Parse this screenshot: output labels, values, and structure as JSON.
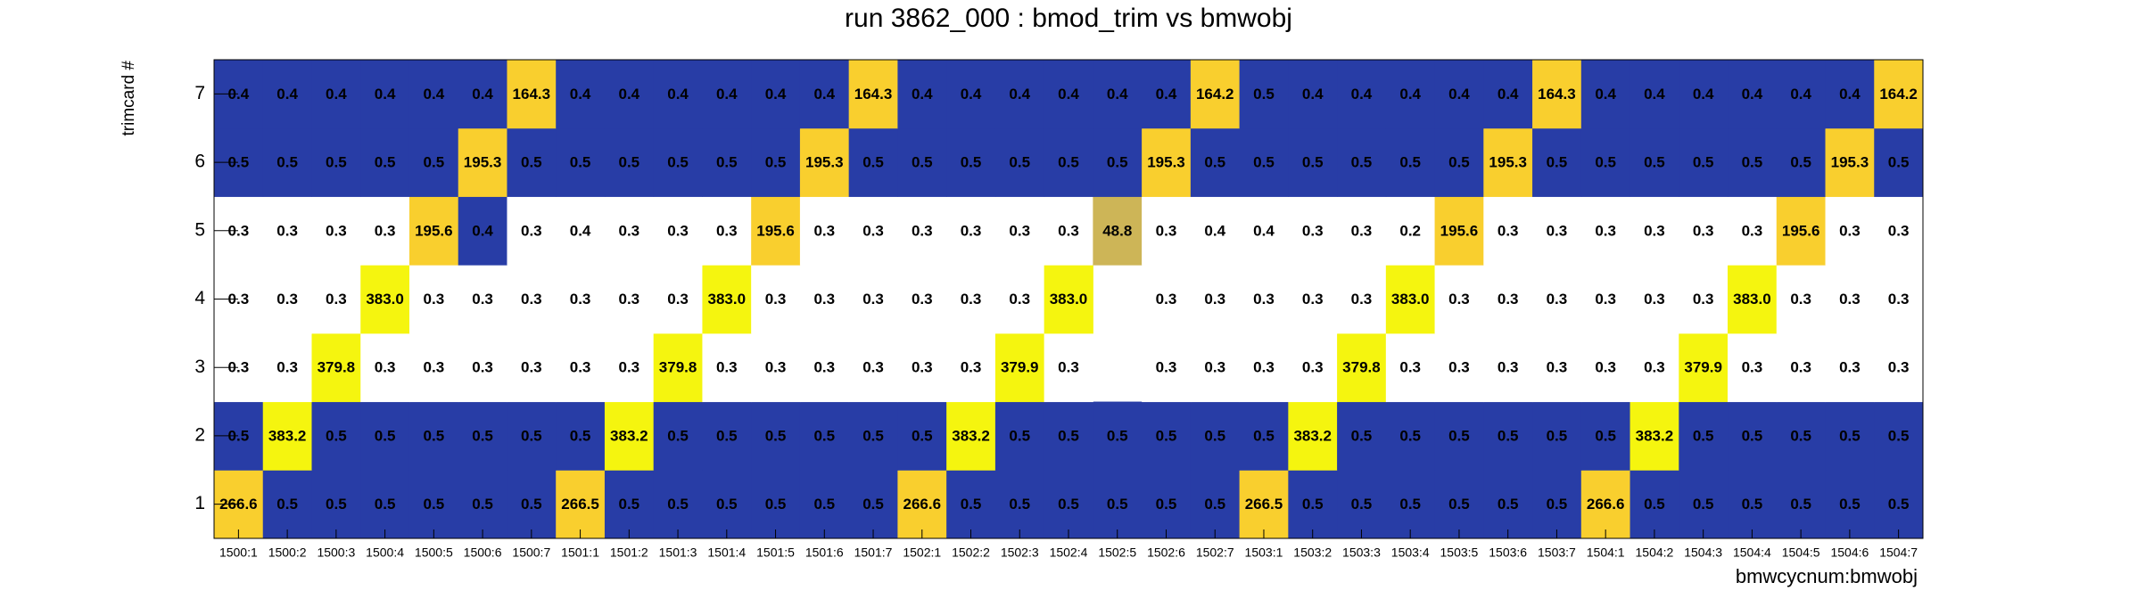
{
  "chart_data": {
    "type": "heatmap",
    "title": "run 3862_000 : bmod_trim vs bmwobj",
    "x_label": "bmwcycnum:bmwobj",
    "y_label": "trimcard #",
    "categories": [
      "1500:1",
      "1500:2",
      "1500:3",
      "1500:4",
      "1500:5",
      "1500:6",
      "1500:7",
      "1501:1",
      "1501:2",
      "1501:3",
      "1501:4",
      "1501:5",
      "1501:6",
      "1501:7",
      "1502:1",
      "1502:2",
      "1502:3",
      "1502:4",
      "1502:5",
      "1502:6",
      "1502:7",
      "1503:1",
      "1503:2",
      "1503:3",
      "1503:4",
      "1503:5",
      "1503:6",
      "1503:7",
      "1504:1",
      "1504:2",
      "1504:3",
      "1504:4",
      "1504:5",
      "1504:6",
      "1504:7"
    ],
    "y_categories": [
      "1",
      "2",
      "3",
      "4",
      "5",
      "6",
      "7"
    ],
    "rows": [
      {
        "values": [
          266.6,
          0.5,
          0.5,
          0.5,
          0.5,
          0.5,
          0.5,
          266.5,
          0.5,
          0.5,
          0.5,
          0.5,
          0.5,
          0.5,
          266.6,
          0.5,
          0.5,
          0.5,
          0.5,
          0.5,
          0.5,
          266.5,
          0.5,
          0.5,
          0.5,
          0.5,
          0.5,
          0.5,
          266.6,
          0.5,
          0.5,
          0.5,
          0.5,
          0.5,
          0.5
        ],
        "colors": [
          "#f9cf2e",
          "#283da6",
          "#283da6",
          "#283da6",
          "#283da6",
          "#283da6",
          "#283da6",
          "#f9cf2e",
          "#283da6",
          "#283da6",
          "#283da6",
          "#283da6",
          "#283da6",
          "#283da6",
          "#f9cf2e",
          "#283da6",
          "#283da6",
          "#283da6",
          "#283da6",
          "#283da6",
          "#283da6",
          "#f9cf2e",
          "#283da6",
          "#283da6",
          "#283da6",
          "#283da6",
          "#283da6",
          "#283da6",
          "#f9cf2e",
          "#283da6",
          "#283da6",
          "#283da6",
          "#283da6",
          "#283da6",
          "#283da6"
        ]
      },
      {
        "values": [
          0.5,
          383.2,
          0.5,
          0.5,
          0.5,
          0.5,
          0.5,
          0.5,
          383.2,
          0.5,
          0.5,
          0.5,
          0.5,
          0.5,
          0.5,
          383.2,
          0.5,
          0.5,
          0.5,
          0.5,
          0.5,
          0.5,
          383.2,
          0.5,
          0.5,
          0.5,
          0.5,
          0.5,
          0.5,
          383.2,
          0.5,
          0.5,
          0.5,
          0.5,
          0.5
        ],
        "colors": [
          "#283da6",
          "#f5f50f",
          "#283da6",
          "#283da6",
          "#283da6",
          "#283da6",
          "#283da6",
          "#283da6",
          "#f5f50f",
          "#283da6",
          "#283da6",
          "#283da6",
          "#283da6",
          "#283da6",
          "#283da6",
          "#f5f50f",
          "#283da6",
          "#283da6",
          "#283da6",
          "#283da6",
          "#283da6",
          "#283da6",
          "#f5f50f",
          "#283da6",
          "#283da6",
          "#283da6",
          "#283da6",
          "#283da6",
          "#283da6",
          "#f5f50f",
          "#283da6",
          "#283da6",
          "#283da6",
          "#283da6",
          "#283da6"
        ]
      },
      {
        "values": [
          0.3,
          0.3,
          379.8,
          0.3,
          0.3,
          0.3,
          0.3,
          0.3,
          0.3,
          379.8,
          0.3,
          0.3,
          0.3,
          0.3,
          0.3,
          0.3,
          379.9,
          0.3,
          null,
          0.3,
          0.3,
          0.3,
          0.3,
          379.8,
          0.3,
          0.3,
          0.3,
          0.3,
          0.3,
          0.3,
          379.9,
          0.3,
          0.3,
          0.3,
          0.3
        ],
        "colors": [
          "#ffffff",
          "#ffffff",
          "#f5f50f",
          "#ffffff",
          "#ffffff",
          "#ffffff",
          "#ffffff",
          "#ffffff",
          "#ffffff",
          "#f5f50f",
          "#ffffff",
          "#ffffff",
          "#ffffff",
          "#ffffff",
          "#ffffff",
          "#ffffff",
          "#f5f50f",
          "#ffffff",
          null,
          "#ffffff",
          "#ffffff",
          "#ffffff",
          "#ffffff",
          "#f5f50f",
          "#ffffff",
          "#ffffff",
          "#ffffff",
          "#ffffff",
          "#ffffff",
          "#ffffff",
          "#f5f50f",
          "#ffffff",
          "#ffffff",
          "#ffffff",
          "#ffffff"
        ]
      },
      {
        "values": [
          0.3,
          0.3,
          0.3,
          383,
          0.3,
          0.3,
          0.3,
          0.3,
          0.3,
          0.3,
          383,
          0.3,
          0.3,
          0.3,
          0.3,
          0.3,
          0.3,
          383,
          null,
          0.3,
          0.3,
          0.3,
          0.3,
          0.3,
          383,
          0.3,
          0.3,
          0.3,
          0.3,
          0.3,
          0.3,
          383,
          0.3,
          0.3,
          0.3
        ],
        "value_labels": [
          "0.3",
          "0.3",
          "0.3",
          "383.0",
          "0.3",
          "0.3",
          "0.3",
          "0.3",
          "0.3",
          "0.3",
          "383.0",
          "0.3",
          "0.3",
          "0.3",
          "0.3",
          "0.3",
          "0.3",
          "383.0",
          null,
          "0.3",
          "0.3",
          "0.3",
          "0.3",
          "0.3",
          "383.0",
          "0.3",
          "0.3",
          "0.3",
          "0.3",
          "0.3",
          "0.3",
          "383.0",
          "0.3",
          "0.3",
          "0.3"
        ],
        "colors": [
          "#ffffff",
          "#ffffff",
          "#ffffff",
          "#f5f50f",
          "#ffffff",
          "#ffffff",
          "#ffffff",
          "#ffffff",
          "#ffffff",
          "#ffffff",
          "#f5f50f",
          "#ffffff",
          "#ffffff",
          "#ffffff",
          "#ffffff",
          "#ffffff",
          "#ffffff",
          "#f5f50f",
          null,
          "#ffffff",
          "#ffffff",
          "#ffffff",
          "#ffffff",
          "#ffffff",
          "#f5f50f",
          "#ffffff",
          "#ffffff",
          "#ffffff",
          "#ffffff",
          "#ffffff",
          "#ffffff",
          "#f5f50f",
          "#ffffff",
          "#ffffff",
          "#ffffff"
        ]
      },
      {
        "values": [
          0.3,
          0.3,
          0.3,
          0.3,
          195.6,
          0.4,
          0.3,
          0.4,
          0.3,
          0.3,
          0.3,
          195.6,
          0.3,
          0.3,
          0.3,
          0.3,
          0.3,
          0.3,
          48.8,
          0.3,
          0.4,
          0.4,
          0.3,
          0.3,
          0.2,
          195.6,
          0.3,
          0.3,
          0.3,
          0.3,
          0.3,
          0.3,
          195.6,
          0.3,
          0.3
        ],
        "colors": [
          "#ffffff",
          "#ffffff",
          "#ffffff",
          "#ffffff",
          "#f9cf2e",
          "#283da6",
          "#ffffff",
          "#ffffff",
          "#ffffff",
          "#ffffff",
          "#ffffff",
          "#f9cf2e",
          "#ffffff",
          "#ffffff",
          "#ffffff",
          "#ffffff",
          "#ffffff",
          "#ffffff",
          "#cdb557",
          "#ffffff",
          "#ffffff",
          "#ffffff",
          "#ffffff",
          "#ffffff",
          "#ffffff",
          "#f9cf2e",
          "#ffffff",
          "#ffffff",
          "#ffffff",
          "#ffffff",
          "#ffffff",
          "#ffffff",
          "#f9cf2e",
          "#ffffff",
          "#ffffff"
        ]
      },
      {
        "values": [
          0.5,
          0.5,
          0.5,
          0.5,
          0.5,
          195.3,
          0.5,
          0.5,
          0.5,
          0.5,
          0.5,
          0.5,
          195.3,
          0.5,
          0.5,
          0.5,
          0.5,
          0.5,
          0.5,
          195.3,
          0.5,
          0.5,
          0.5,
          0.5,
          0.5,
          0.5,
          195.3,
          0.5,
          0.5,
          0.5,
          0.5,
          0.5,
          0.5,
          195.3,
          0.5
        ],
        "colors": [
          "#283da6",
          "#283da6",
          "#283da6",
          "#283da6",
          "#283da6",
          "#f9cf2e",
          "#283da6",
          "#283da6",
          "#283da6",
          "#283da6",
          "#283da6",
          "#283da6",
          "#f9cf2e",
          "#283da6",
          "#283da6",
          "#283da6",
          "#283da6",
          "#283da6",
          "#283da6",
          "#f9cf2e",
          "#283da6",
          "#283da6",
          "#283da6",
          "#283da6",
          "#283da6",
          "#283da6",
          "#f9cf2e",
          "#283da6",
          "#283da6",
          "#283da6",
          "#283da6",
          "#283da6",
          "#283da6",
          "#f9cf2e",
          "#283da6"
        ]
      },
      {
        "values": [
          0.4,
          0.4,
          0.4,
          0.4,
          0.4,
          0.4,
          164.3,
          0.4,
          0.4,
          0.4,
          0.4,
          0.4,
          0.4,
          164.3,
          0.4,
          0.4,
          0.4,
          0.4,
          0.4,
          0.4,
          164.2,
          0.5,
          0.4,
          0.4,
          0.4,
          0.4,
          0.4,
          164.3,
          0.4,
          0.4,
          0.4,
          0.4,
          0.4,
          0.4,
          164.2
        ],
        "colors": [
          "#283da6",
          "#283da6",
          "#283da6",
          "#283da6",
          "#283da6",
          "#283da6",
          "#f9cf2e",
          "#283da6",
          "#283da6",
          "#283da6",
          "#283da6",
          "#283da6",
          "#283da6",
          "#f9cf2e",
          "#283da6",
          "#283da6",
          "#283da6",
          "#283da6",
          "#283da6",
          "#283da6",
          "#f9cf2e",
          "#283da6",
          "#283da6",
          "#283da6",
          "#283da6",
          "#283da6",
          "#283da6",
          "#f9cf2e",
          "#283da6",
          "#283da6",
          "#283da6",
          "#283da6",
          "#283da6",
          "#283da6",
          "#f9cf2e"
        ]
      }
    ]
  }
}
